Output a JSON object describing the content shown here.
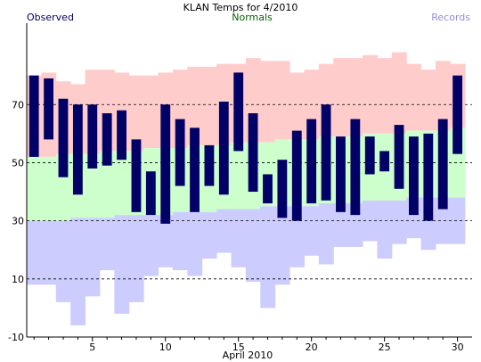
{
  "title": "KLAN Temps for 4/2010",
  "legend": {
    "observed": "Observed",
    "normals": "Normals",
    "records": "Records"
  },
  "colors": {
    "observed": "#000066",
    "normals_text": "#006600",
    "records_text": "#9988dd",
    "record_high_fill": "#ffcccc",
    "normal_fill": "#ccffcc",
    "record_low_fill": "#ccccff",
    "grid": "#000000"
  },
  "chart_data": {
    "type": "bar",
    "title": "KLAN Temps for 4/2010",
    "xlabel": "April 2010",
    "ylabel": "",
    "ylim": [
      -10,
      98
    ],
    "xlim": [
      0.5,
      31
    ],
    "yticks": [
      -10,
      10,
      30,
      50,
      70
    ],
    "xticks": [
      5,
      10,
      15,
      20,
      25,
      30
    ],
    "grid": "dashed horizontal at 10, 30, 50, 70",
    "days": [
      1,
      2,
      3,
      4,
      5,
      6,
      7,
      8,
      9,
      10,
      11,
      12,
      13,
      14,
      15,
      16,
      17,
      18,
      19,
      20,
      21,
      22,
      23,
      24,
      25,
      26,
      27,
      28,
      29,
      30
    ],
    "series": [
      {
        "name": "Observed high",
        "values": [
          80,
          79,
          72,
          70,
          70,
          67,
          68,
          58,
          47,
          70,
          65,
          62,
          56,
          71,
          81,
          67,
          46,
          51,
          61,
          65,
          70,
          59,
          65,
          59,
          54,
          63,
          59,
          60,
          65,
          80
        ]
      },
      {
        "name": "Observed low",
        "values": [
          52,
          58,
          45,
          39,
          48,
          49,
          51,
          33,
          32,
          29,
          42,
          33,
          42,
          39,
          54,
          40,
          36,
          31,
          30,
          36,
          37,
          33,
          32,
          46,
          47,
          41,
          32,
          30,
          34,
          53
        ]
      },
      {
        "name": "Normal high",
        "values": [
          52,
          52,
          53,
          53,
          53,
          54,
          54,
          54,
          55,
          55,
          55,
          56,
          56,
          56,
          57,
          57,
          57,
          58,
          58,
          58,
          59,
          59,
          59,
          60,
          60,
          60,
          61,
          61,
          61,
          62
        ]
      },
      {
        "name": "Normal low",
        "values": [
          30,
          30,
          30,
          31,
          31,
          31,
          32,
          32,
          32,
          32,
          33,
          33,
          33,
          34,
          34,
          34,
          35,
          35,
          35,
          35,
          36,
          36,
          36,
          37,
          37,
          37,
          38,
          38,
          38,
          38
        ]
      },
      {
        "name": "Record high",
        "values": [
          80,
          81,
          78,
          77,
          82,
          82,
          81,
          80,
          80,
          81,
          82,
          83,
          83,
          84,
          84,
          86,
          85,
          85,
          81,
          82,
          84,
          86,
          86,
          87,
          86,
          88,
          84,
          82,
          85,
          84
        ]
      },
      {
        "name": "Record low",
        "values": [
          8,
          8,
          2,
          -6,
          4,
          13,
          -2,
          2,
          11,
          14,
          13,
          11,
          17,
          19,
          14,
          9,
          0,
          8,
          14,
          18,
          15,
          21,
          21,
          23,
          17,
          22,
          24,
          20,
          22,
          22
        ]
      }
    ]
  }
}
